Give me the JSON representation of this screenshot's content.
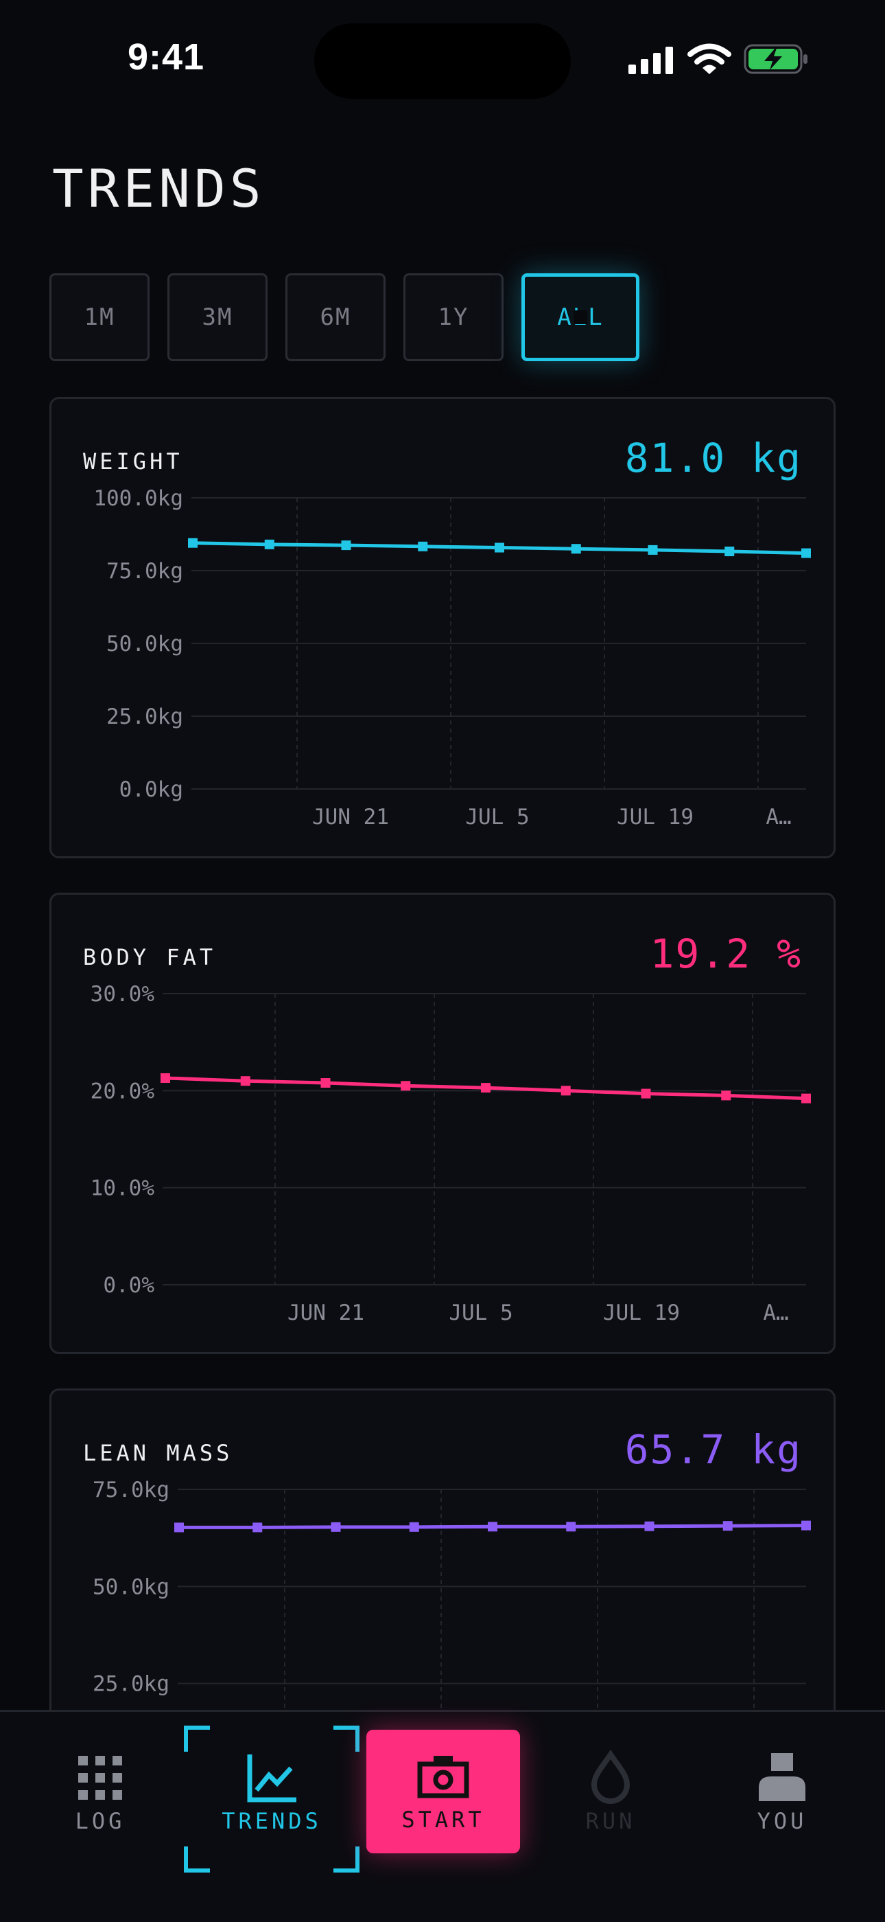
{
  "status": {
    "time": "9:41"
  },
  "page": {
    "title": "TRENDS"
  },
  "ranges": [
    {
      "label": "1M",
      "active": false
    },
    {
      "label": "3M",
      "active": false
    },
    {
      "label": "6M",
      "active": false
    },
    {
      "label": "1Y",
      "active": false
    },
    {
      "label": "ALL",
      "active": true
    }
  ],
  "colors": {
    "accent_cyan": "#22c6e6",
    "accent_pink": "#ff2d7e",
    "accent_purple": "#8b5cf6"
  },
  "cards": {
    "weight": {
      "label": "WEIGHT",
      "value": "81.0 kg"
    },
    "bodyfat": {
      "label": "BODY FAT",
      "value": "19.2 %"
    },
    "lean": {
      "label": "LEAN MASS",
      "value": "65.7 kg"
    }
  },
  "chart_data": [
    {
      "type": "line",
      "title": "WEIGHT",
      "series": [
        {
          "values": [
            84.5,
            84.0,
            83.7,
            83.3,
            82.9,
            82.5,
            82.1,
            81.6,
            81.0
          ]
        }
      ],
      "ylim": [
        0,
        100
      ],
      "yticks": [
        "100.0kg",
        "75.0kg",
        "50.0kg",
        "25.0kg",
        "0.0kg"
      ],
      "xticks": [
        "JUN 21",
        "JUL 5",
        "JUL 19",
        "A…"
      ],
      "grid": true,
      "color": "#22c6e6"
    },
    {
      "type": "line",
      "title": "BODY FAT",
      "series": [
        {
          "values": [
            21.3,
            21.0,
            20.8,
            20.5,
            20.3,
            20.0,
            19.7,
            19.5,
            19.2
          ]
        }
      ],
      "ylim": [
        0,
        30
      ],
      "yticks": [
        "30.0%",
        "20.0%",
        "10.0%",
        "0.0%"
      ],
      "xticks": [
        "JUN 21",
        "JUL 5",
        "JUL 19",
        "A…"
      ],
      "grid": true,
      "color": "#ff2d7e"
    },
    {
      "type": "line",
      "title": "LEAN MASS",
      "series": [
        {
          "values": [
            65.2,
            65.2,
            65.3,
            65.3,
            65.4,
            65.4,
            65.5,
            65.6,
            65.7
          ]
        }
      ],
      "ylim": [
        0,
        75
      ],
      "yticks": [
        "75.0kg",
        "50.0kg",
        "25.0kg"
      ],
      "xticks": [],
      "grid": true,
      "color": "#8b5cf6"
    }
  ],
  "tabs": [
    {
      "label": "LOG",
      "icon": "grid-icon",
      "state": "normal"
    },
    {
      "label": "TRENDS",
      "icon": "chart-icon",
      "state": "selected"
    },
    {
      "label": "START",
      "icon": "camera-icon",
      "state": "primary"
    },
    {
      "label": "RUN",
      "icon": "drop-icon",
      "state": "disabled"
    },
    {
      "label": "YOU",
      "icon": "person-icon",
      "state": "normal"
    }
  ]
}
